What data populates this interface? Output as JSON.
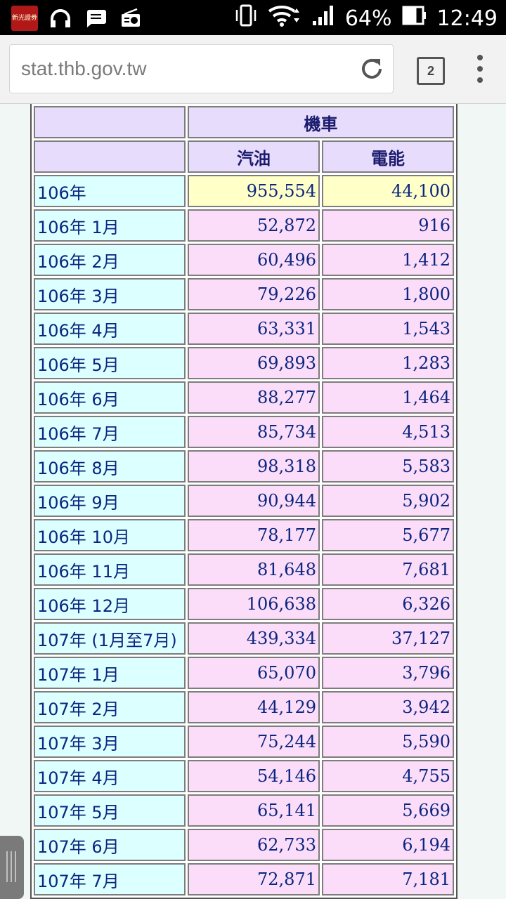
{
  "status_bar": {
    "battery": "64%",
    "time": "12:49",
    "app_logo_text": "新光證券"
  },
  "browser": {
    "url": "stat.thb.gov.tw",
    "tab_count": "2"
  },
  "table": {
    "group_header": "機車",
    "columns": [
      "汽油",
      "電能"
    ],
    "rows": [
      {
        "label": "106年",
        "gas": "955,554",
        "electric": "44,100"
      },
      {
        "label": "106年 1月",
        "gas": "52,872",
        "electric": "916"
      },
      {
        "label": "106年 2月",
        "gas": "60,496",
        "electric": "1,412"
      },
      {
        "label": "106年 3月",
        "gas": "79,226",
        "electric": "1,800"
      },
      {
        "label": "106年 4月",
        "gas": "63,331",
        "electric": "1,543"
      },
      {
        "label": "106年 5月",
        "gas": "69,893",
        "electric": "1,283"
      },
      {
        "label": "106年 6月",
        "gas": "88,277",
        "electric": "1,464"
      },
      {
        "label": "106年 7月",
        "gas": "85,734",
        "electric": "4,513"
      },
      {
        "label": "106年 8月",
        "gas": "98,318",
        "electric": "5,583"
      },
      {
        "label": "106年 9月",
        "gas": "90,944",
        "electric": "5,902"
      },
      {
        "label": "106年 10月",
        "gas": "78,177",
        "electric": "5,677"
      },
      {
        "label": "106年 11月",
        "gas": "81,648",
        "electric": "7,681"
      },
      {
        "label": "106年 12月",
        "gas": "106,638",
        "electric": "6,326"
      },
      {
        "label": "107年 (1月至7月)",
        "gas": "439,334",
        "electric": "37,127"
      },
      {
        "label": "107年 1月",
        "gas": "65,070",
        "electric": "3,796"
      },
      {
        "label": "107年 2月",
        "gas": "44,129",
        "electric": "3,942"
      },
      {
        "label": "107年 3月",
        "gas": "75,244",
        "electric": "5,590"
      },
      {
        "label": "107年 4月",
        "gas": "54,146",
        "electric": "4,755"
      },
      {
        "label": "107年 5月",
        "gas": "65,141",
        "electric": "5,669"
      },
      {
        "label": "107年 6月",
        "gas": "62,733",
        "electric": "6,194"
      },
      {
        "label": "107年 7月",
        "gas": "72,871",
        "electric": "7,181"
      }
    ]
  }
}
